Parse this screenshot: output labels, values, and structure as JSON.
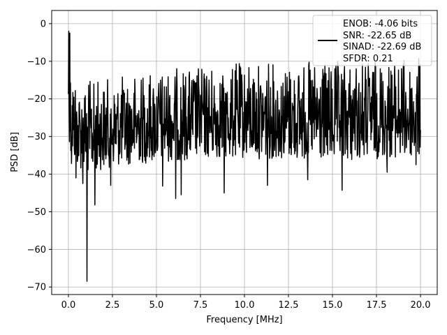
{
  "chart_data": {
    "type": "line",
    "xlabel": "Frequency [MHz]",
    "ylabel": "PSD [dB]",
    "xlim": [
      -0.95,
      20.95
    ],
    "ylim": [
      -72,
      3.5
    ],
    "xticks": [
      0.0,
      2.5,
      5.0,
      7.5,
      10.0,
      12.5,
      15.0,
      17.5,
      20.0
    ],
    "xtick_labels": [
      "0.0",
      "2.5",
      "5.0",
      "7.5",
      "10.0",
      "12.5",
      "15.0",
      "17.5",
      "20.0"
    ],
    "yticks": [
      0,
      -10,
      -20,
      -30,
      -40,
      -50,
      -60,
      -70
    ],
    "ytick_labels": [
      "0",
      "−10",
      "−20",
      "−30",
      "−40",
      "−50",
      "−60",
      "−70"
    ],
    "grid": true,
    "legend_placement": "top-right",
    "line_color": "#000000",
    "legend_lines": [
      "ENOB: -4.06 bits",
      "SNR: -22.65 dB",
      "SINAD: -22.69 dB",
      "SFDR: 0.21"
    ],
    "series": [
      {
        "x_start": 0.0,
        "x_end": 20.0,
        "points": 1025,
        "envelope": {
          "x": [
            0.0,
            0.1,
            0.5,
            1.0,
            2.5,
            5.0,
            7.5,
            10.0,
            12.5,
            15.0,
            17.5,
            20.0
          ],
          "upper": [
            -2,
            -8,
            -15,
            -15,
            -14,
            -12,
            -11,
            -10,
            -10,
            -10,
            -9,
            -9
          ],
          "lower": [
            -25,
            -36,
            -38,
            -40,
            -38,
            -37,
            -36,
            -36,
            -36,
            -37,
            -36,
            -36
          ]
        },
        "spikes": [
          {
            "x": 0.02,
            "y": -2.0
          },
          {
            "x": 0.08,
            "y": -2.5
          },
          {
            "x": 0.18,
            "y": -37.2
          },
          {
            "x": 0.42,
            "y": -41.0
          },
          {
            "x": 0.83,
            "y": -42.5
          },
          {
            "x": 1.05,
            "y": -68.5
          },
          {
            "x": 1.5,
            "y": -48.2
          },
          {
            "x": 2.4,
            "y": -43.0
          },
          {
            "x": 5.35,
            "y": -43.2
          },
          {
            "x": 6.1,
            "y": -46.5
          },
          {
            "x": 6.4,
            "y": -45.5
          },
          {
            "x": 8.85,
            "y": -45.0
          },
          {
            "x": 11.3,
            "y": -43.0
          },
          {
            "x": 13.6,
            "y": -41.5
          },
          {
            "x": 15.55,
            "y": -44.3
          },
          {
            "x": 18.1,
            "y": -39.5
          },
          {
            "x": 19.75,
            "y": -37.5
          }
        ]
      }
    ]
  }
}
